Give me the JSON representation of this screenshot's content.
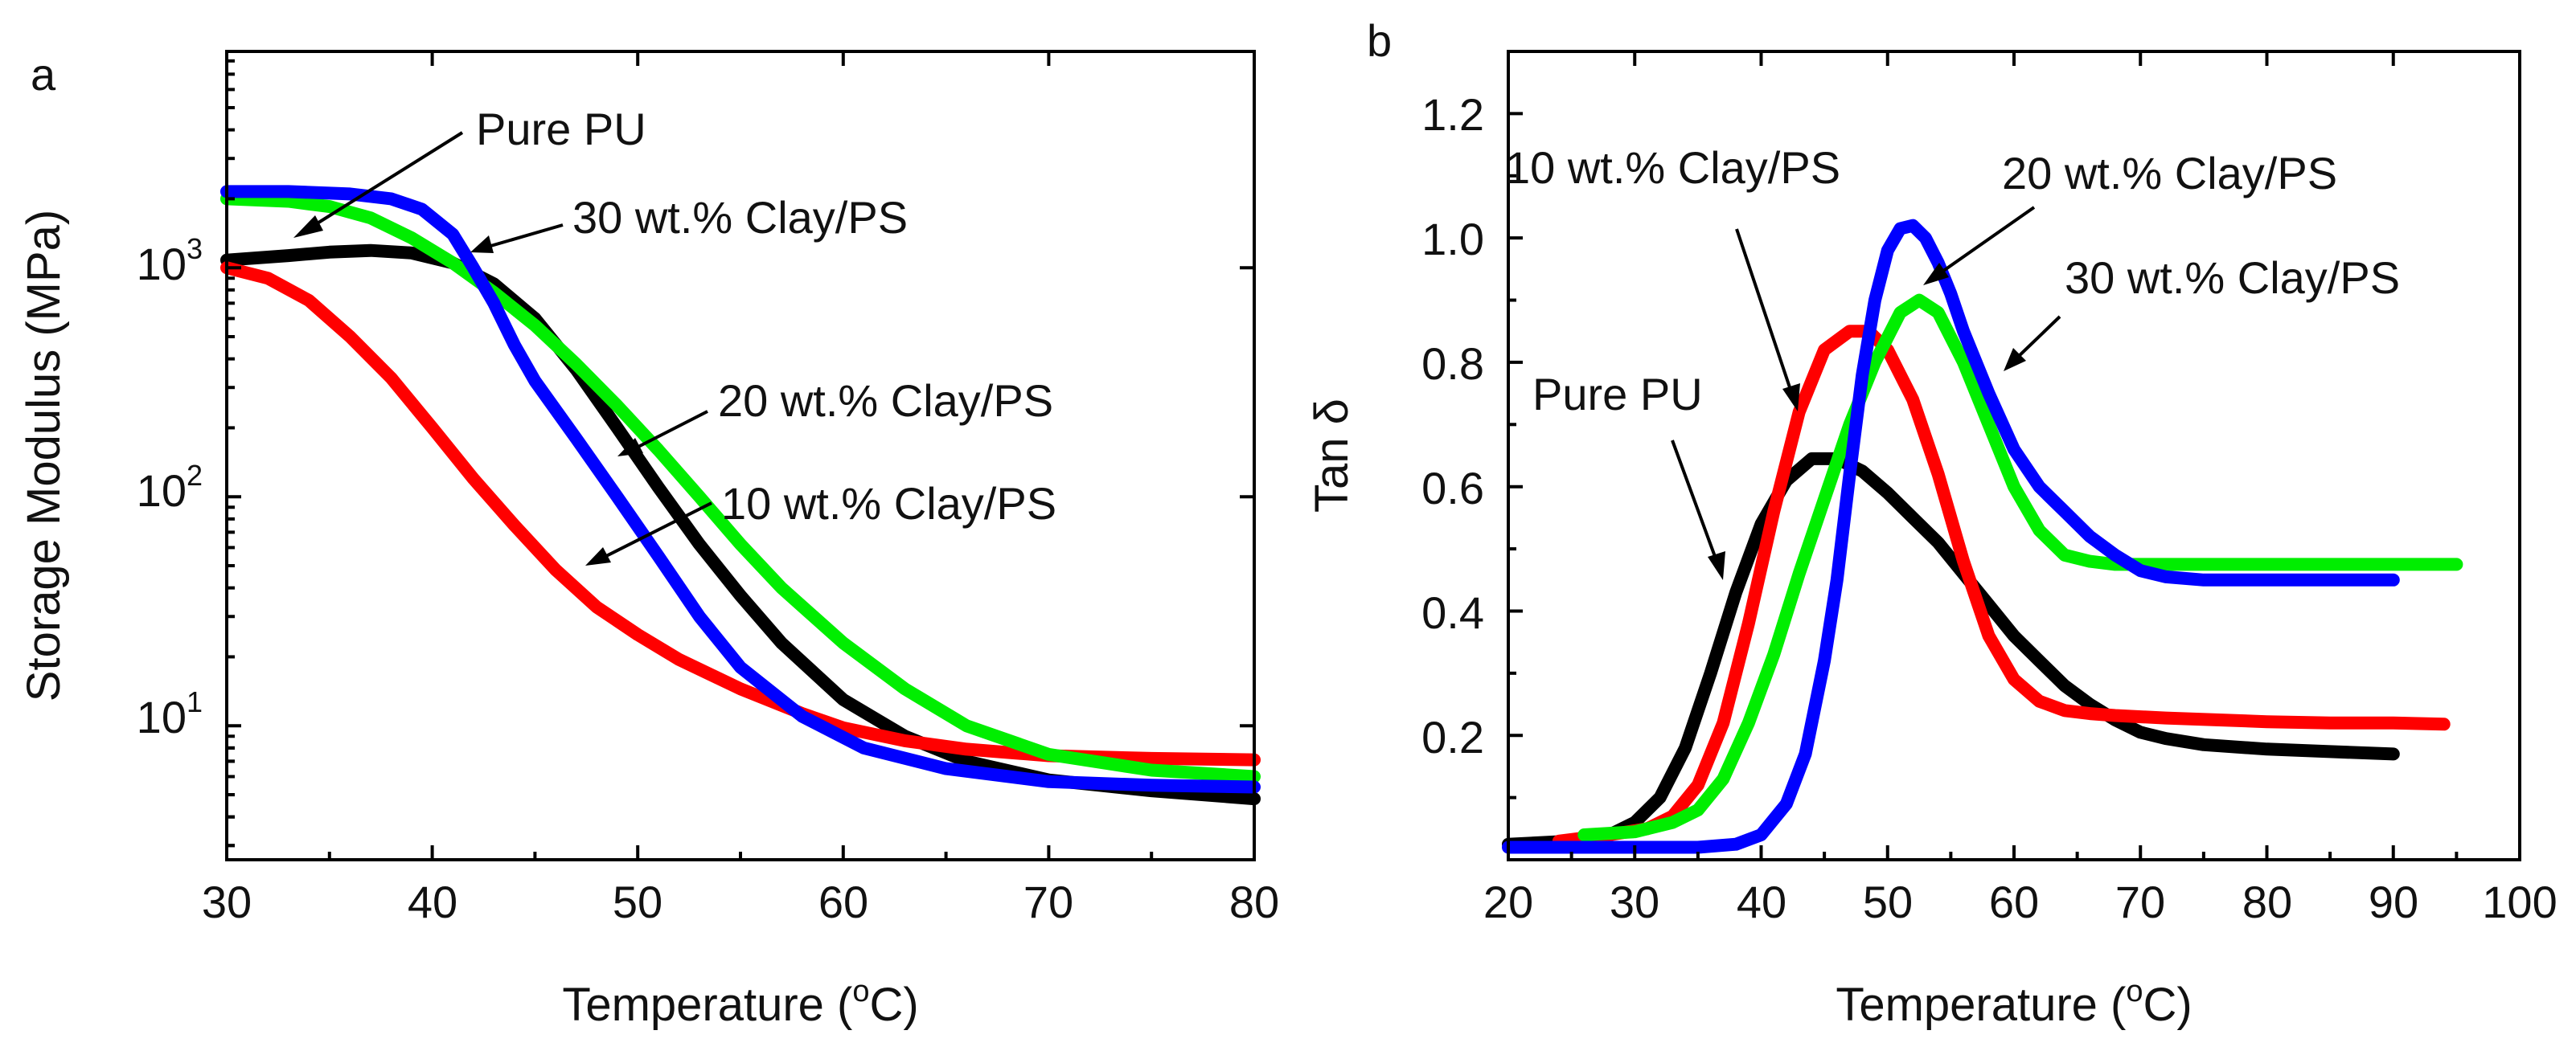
{
  "chart_data": [
    {
      "panel": "a",
      "type": "line",
      "xlabel_prefix": "Temperature (",
      "xlabel_sup": "o",
      "xlabel_suffix": "C)",
      "ylabel": "Storage Modulus (MPa)",
      "xlim": [
        30,
        80
      ],
      "ylim": [
        2.6,
        8800
      ],
      "yscale": "log",
      "xticks": [
        30,
        40,
        50,
        60,
        70,
        80
      ],
      "yticks": [
        {
          "value": 10,
          "base": "10",
          "exp": "1"
        },
        {
          "value": 100,
          "base": "10",
          "exp": "2"
        },
        {
          "value": 1000,
          "base": "10",
          "exp": "3"
        }
      ],
      "series": [
        {
          "name": "Pure PU",
          "color": "#000000",
          "x": [
            30,
            33,
            35,
            37,
            39,
            41,
            43,
            45,
            47,
            49,
            51,
            53,
            55,
            57,
            60,
            63,
            66,
            70,
            75,
            80
          ],
          "y": [
            1080,
            1130,
            1170,
            1190,
            1160,
            1050,
            850,
            600,
            360,
            200,
            110,
            62,
            37,
            23,
            13,
            9,
            7,
            5.8,
            5.2,
            4.8
          ]
        },
        {
          "name": "10 wt.% Clay/PS",
          "color": "#ff0000",
          "x": [
            30,
            32,
            34,
            36,
            38,
            40,
            42,
            44,
            46,
            48,
            50,
            52,
            55,
            58,
            60,
            63,
            66,
            70,
            75,
            80
          ],
          "y": [
            1000,
            900,
            720,
            500,
            330,
            200,
            120,
            75,
            48,
            33,
            25,
            19.5,
            14.5,
            11.3,
            9.8,
            8.6,
            7.9,
            7.4,
            7.2,
            7.1
          ]
        },
        {
          "name": "20 wt.% Clay/PS",
          "color": "#00ee00",
          "x": [
            30,
            33,
            35,
            37,
            39,
            41,
            43,
            45,
            47,
            49,
            51,
            53,
            55,
            57,
            60,
            63,
            66,
            70,
            75,
            80
          ],
          "y": [
            2000,
            1950,
            1850,
            1650,
            1350,
            1050,
            780,
            560,
            380,
            250,
            160,
            100,
            62,
            40,
            23,
            14.5,
            10,
            7.5,
            6.4,
            6.0
          ]
        },
        {
          "name": "30 wt.% Clay/PS",
          "color": "#0000ff",
          "x": [
            30,
            33,
            36,
            38,
            39.5,
            41,
            42,
            43,
            44,
            45,
            47,
            49,
            51,
            53,
            55,
            58,
            61,
            65,
            70,
            75,
            80
          ],
          "y": [
            2150,
            2150,
            2100,
            2000,
            1800,
            1400,
            1000,
            700,
            460,
            320,
            180,
            100,
            55,
            30,
            18,
            11,
            8,
            6.5,
            5.7,
            5.5,
            5.4
          ]
        }
      ],
      "annotations": [
        {
          "text": "Pure PU",
          "color": "#000000"
        },
        {
          "text": "30 wt.% Clay/PS",
          "color": "#0000ff"
        },
        {
          "text": "20 wt.% Clay/PS",
          "color": "#00ee00"
        },
        {
          "text": "10 wt.% Clay/PS",
          "color": "#ff0000"
        }
      ]
    },
    {
      "panel": "b",
      "type": "line",
      "xlabel_prefix": "Temperature (",
      "xlabel_sup": "o",
      "xlabel_suffix": "C)",
      "ylabel": "Tan δ",
      "xlim": [
        20,
        100
      ],
      "ylim": [
        0,
        1.3
      ],
      "xticks": [
        20,
        30,
        40,
        50,
        60,
        70,
        80,
        90,
        100
      ],
      "yticks": [
        0.2,
        0.4,
        0.6,
        0.8,
        1.0,
        1.2
      ],
      "series": [
        {
          "name": "Pure PU",
          "color": "#000000",
          "x": [
            20,
            25,
            28,
            30,
            32,
            34,
            36,
            38,
            40,
            42,
            44,
            46,
            48,
            50,
            52,
            54,
            56,
            58,
            60,
            62,
            64,
            66,
            68,
            70,
            72,
            75,
            80,
            85,
            90
          ],
          "y": [
            0.025,
            0.03,
            0.04,
            0.06,
            0.1,
            0.18,
            0.3,
            0.43,
            0.54,
            0.61,
            0.645,
            0.645,
            0.625,
            0.59,
            0.55,
            0.51,
            0.46,
            0.41,
            0.36,
            0.32,
            0.28,
            0.25,
            0.225,
            0.205,
            0.195,
            0.185,
            0.178,
            0.174,
            0.17
          ]
        },
        {
          "name": "10 wt.% Clay/PS",
          "color": "#ff0000",
          "x": [
            24,
            28,
            31,
            33,
            35,
            37,
            39,
            41,
            43,
            45,
            47,
            48.5,
            50,
            52,
            54,
            56,
            58,
            60,
            62,
            64,
            66,
            68,
            72,
            76,
            80,
            85,
            90,
            94
          ],
          "y": [
            0.03,
            0.04,
            0.05,
            0.07,
            0.12,
            0.22,
            0.38,
            0.56,
            0.72,
            0.82,
            0.85,
            0.85,
            0.82,
            0.74,
            0.62,
            0.48,
            0.36,
            0.29,
            0.255,
            0.24,
            0.235,
            0.232,
            0.228,
            0.225,
            0.222,
            0.22,
            0.22,
            0.218
          ]
        },
        {
          "name": "20 wt.% Clay/PS",
          "color": "#00ee00",
          "x": [
            26,
            30,
            33,
            35,
            37,
            39,
            41,
            43,
            45,
            47,
            49,
            51,
            52.5,
            54,
            56,
            58,
            60,
            62,
            64,
            66,
            68,
            70,
            75,
            80,
            85,
            90,
            95
          ],
          "y": [
            0.04,
            0.045,
            0.06,
            0.08,
            0.13,
            0.22,
            0.33,
            0.46,
            0.58,
            0.7,
            0.8,
            0.88,
            0.9,
            0.88,
            0.8,
            0.7,
            0.6,
            0.53,
            0.49,
            0.48,
            0.475,
            0.475,
            0.475,
            0.475,
            0.475,
            0.475,
            0.475
          ]
        },
        {
          "name": "30 wt.% Clay/PS",
          "color": "#0000ff",
          "x": [
            20,
            30,
            35,
            38,
            40,
            42,
            43.5,
            45,
            46,
            47,
            48,
            49,
            50,
            51,
            52,
            53,
            54,
            55,
            56,
            58,
            60,
            62,
            64,
            66,
            68,
            70,
            72,
            75,
            80,
            85,
            90
          ],
          "y": [
            0.02,
            0.02,
            0.02,
            0.025,
            0.04,
            0.09,
            0.17,
            0.32,
            0.45,
            0.62,
            0.78,
            0.9,
            0.98,
            1.015,
            1.02,
            1.0,
            0.96,
            0.91,
            0.85,
            0.75,
            0.66,
            0.6,
            0.56,
            0.52,
            0.49,
            0.465,
            0.455,
            0.45,
            0.45,
            0.45,
            0.45
          ]
        }
      ],
      "annotations": [
        {
          "text": "10 wt.% Clay/PS",
          "color": "#ff0000"
        },
        {
          "text": "20 wt.% Clay/PS",
          "color": "#00ee00"
        },
        {
          "text": "30 wt.% Clay/PS",
          "color": "#0000ff"
        },
        {
          "text": "Pure PU",
          "color": "#000000"
        }
      ]
    }
  ]
}
